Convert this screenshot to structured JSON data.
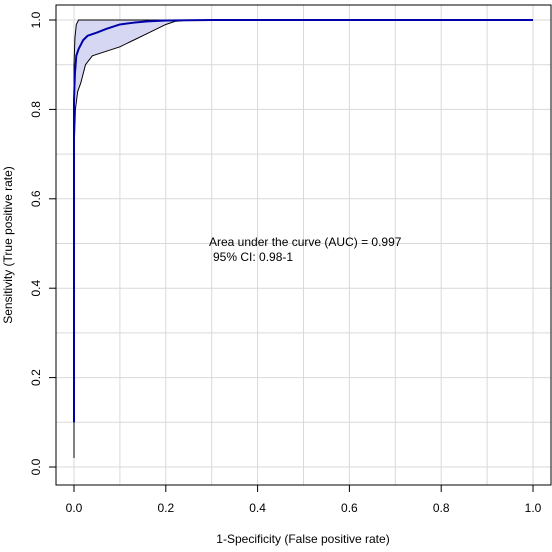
{
  "chart_data": {
    "type": "line",
    "title": "",
    "xlabel": "1-Specificity (False positive rate)",
    "ylabel": "Sensitivity (True positive rate)",
    "xlim": [
      0,
      1
    ],
    "ylim": [
      0,
      1
    ],
    "x_ticks": [
      "0.0",
      "0.2",
      "0.4",
      "0.6",
      "0.8",
      "1.0"
    ],
    "y_ticks": [
      "0.0",
      "0.2",
      "0.4",
      "0.6",
      "0.8",
      "1.0"
    ],
    "grid": true,
    "annotations": [
      "Area under the curve (AUC) = 0.997",
      "95% CI: 0.98-1"
    ],
    "series": [
      {
        "role": "roc-curve",
        "color": "#0000aa",
        "x": [
          0.0,
          0.0,
          0.002,
          0.005,
          0.01,
          0.015,
          0.02,
          0.03,
          0.05,
          0.07,
          0.1,
          0.13,
          0.16,
          0.2,
          0.3,
          0.5,
          1.0
        ],
        "y": [
          0.1,
          0.82,
          0.88,
          0.92,
          0.935,
          0.945,
          0.955,
          0.965,
          0.972,
          0.98,
          0.99,
          0.994,
          0.997,
          0.999,
          1.0,
          1.0,
          1.0
        ]
      },
      {
        "role": "ci-upper",
        "color": "#000000",
        "x": [
          0.0,
          0.0,
          0.002,
          0.005,
          0.01,
          1.0
        ],
        "y": [
          0.7,
          0.9,
          0.96,
          0.99,
          1.0,
          1.0
        ]
      },
      {
        "role": "ci-lower",
        "color": "#000000",
        "x": [
          0.0,
          0.0,
          0.003,
          0.008,
          0.015,
          0.025,
          0.04,
          0.07,
          0.1,
          0.13,
          0.16,
          0.18,
          0.2,
          0.22,
          0.25,
          0.3,
          1.0
        ],
        "y": [
          0.02,
          0.7,
          0.8,
          0.84,
          0.86,
          0.9,
          0.92,
          0.93,
          0.94,
          0.955,
          0.97,
          0.98,
          0.99,
          0.997,
          1.0,
          1.0,
          1.0
        ]
      }
    ],
    "ci_fill_color": "#d6d8f3"
  }
}
